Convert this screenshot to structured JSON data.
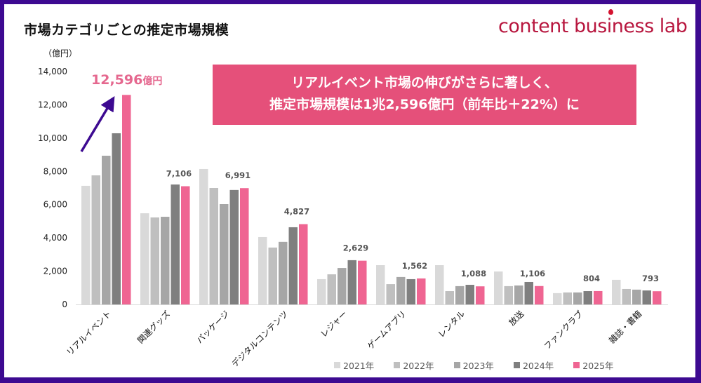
{
  "chart_data": {
    "type": "bar",
    "title": "市場カテゴリごとの推定市場規模",
    "ylabel": "（億円）",
    "ylim": [
      0,
      14000
    ],
    "yticks": [
      "0",
      "2,000",
      "4,000",
      "6,000",
      "8,000",
      "10,000",
      "12,000",
      "14,000"
    ],
    "grid": false,
    "legend_position": "bottom",
    "categories": [
      "リアルイベント",
      "関連グッズ",
      "パッケージ",
      "デジタルコンテンツ",
      "レジャー",
      "ゲームアプリ",
      "レンタル",
      "放送",
      "ファンクラブ",
      "雑誌・書籍"
    ],
    "series": [
      {
        "name": "2021年",
        "color": "#d9d9d9",
        "values": [
          7130,
          5480,
          8140,
          4050,
          1520,
          2360,
          2360,
          1980,
          680,
          1480
        ]
      },
      {
        "name": "2022年",
        "color": "#bfbfbf",
        "values": [
          7760,
          5230,
          7000,
          3420,
          1810,
          1220,
          800,
          1100,
          720,
          930
        ]
      },
      {
        "name": "2023年",
        "color": "#a6a6a6",
        "values": [
          8940,
          5270,
          6030,
          3760,
          2190,
          1650,
          1100,
          1140,
          720,
          890
        ]
      },
      {
        "name": "2024年",
        "color": "#7f7f7f",
        "values": [
          10290,
          7210,
          6880,
          4640,
          2660,
          1520,
          1180,
          1350,
          800,
          840
        ]
      },
      {
        "name": "2025年",
        "color": "#ef6592",
        "values": [
          12596,
          7106,
          6991,
          4827,
          2629,
          1562,
          1088,
          1106,
          804,
          793
        ]
      }
    ],
    "data_labels": [
      "12,596",
      "7,106",
      "6,991",
      "4,827",
      "2,629",
      "1,562",
      "1,088",
      "1,106",
      "804",
      "793"
    ],
    "highlight_unit": "億円",
    "annotation": {
      "line1": "リアルイベント市場の伸びがさらに著しく、",
      "line2": "推定市場規模は1兆2,596億円（前年比＋22%）に",
      "arrow_color": "#3d0a91",
      "box_color": "#e5507a"
    }
  },
  "logo": "content business lab"
}
